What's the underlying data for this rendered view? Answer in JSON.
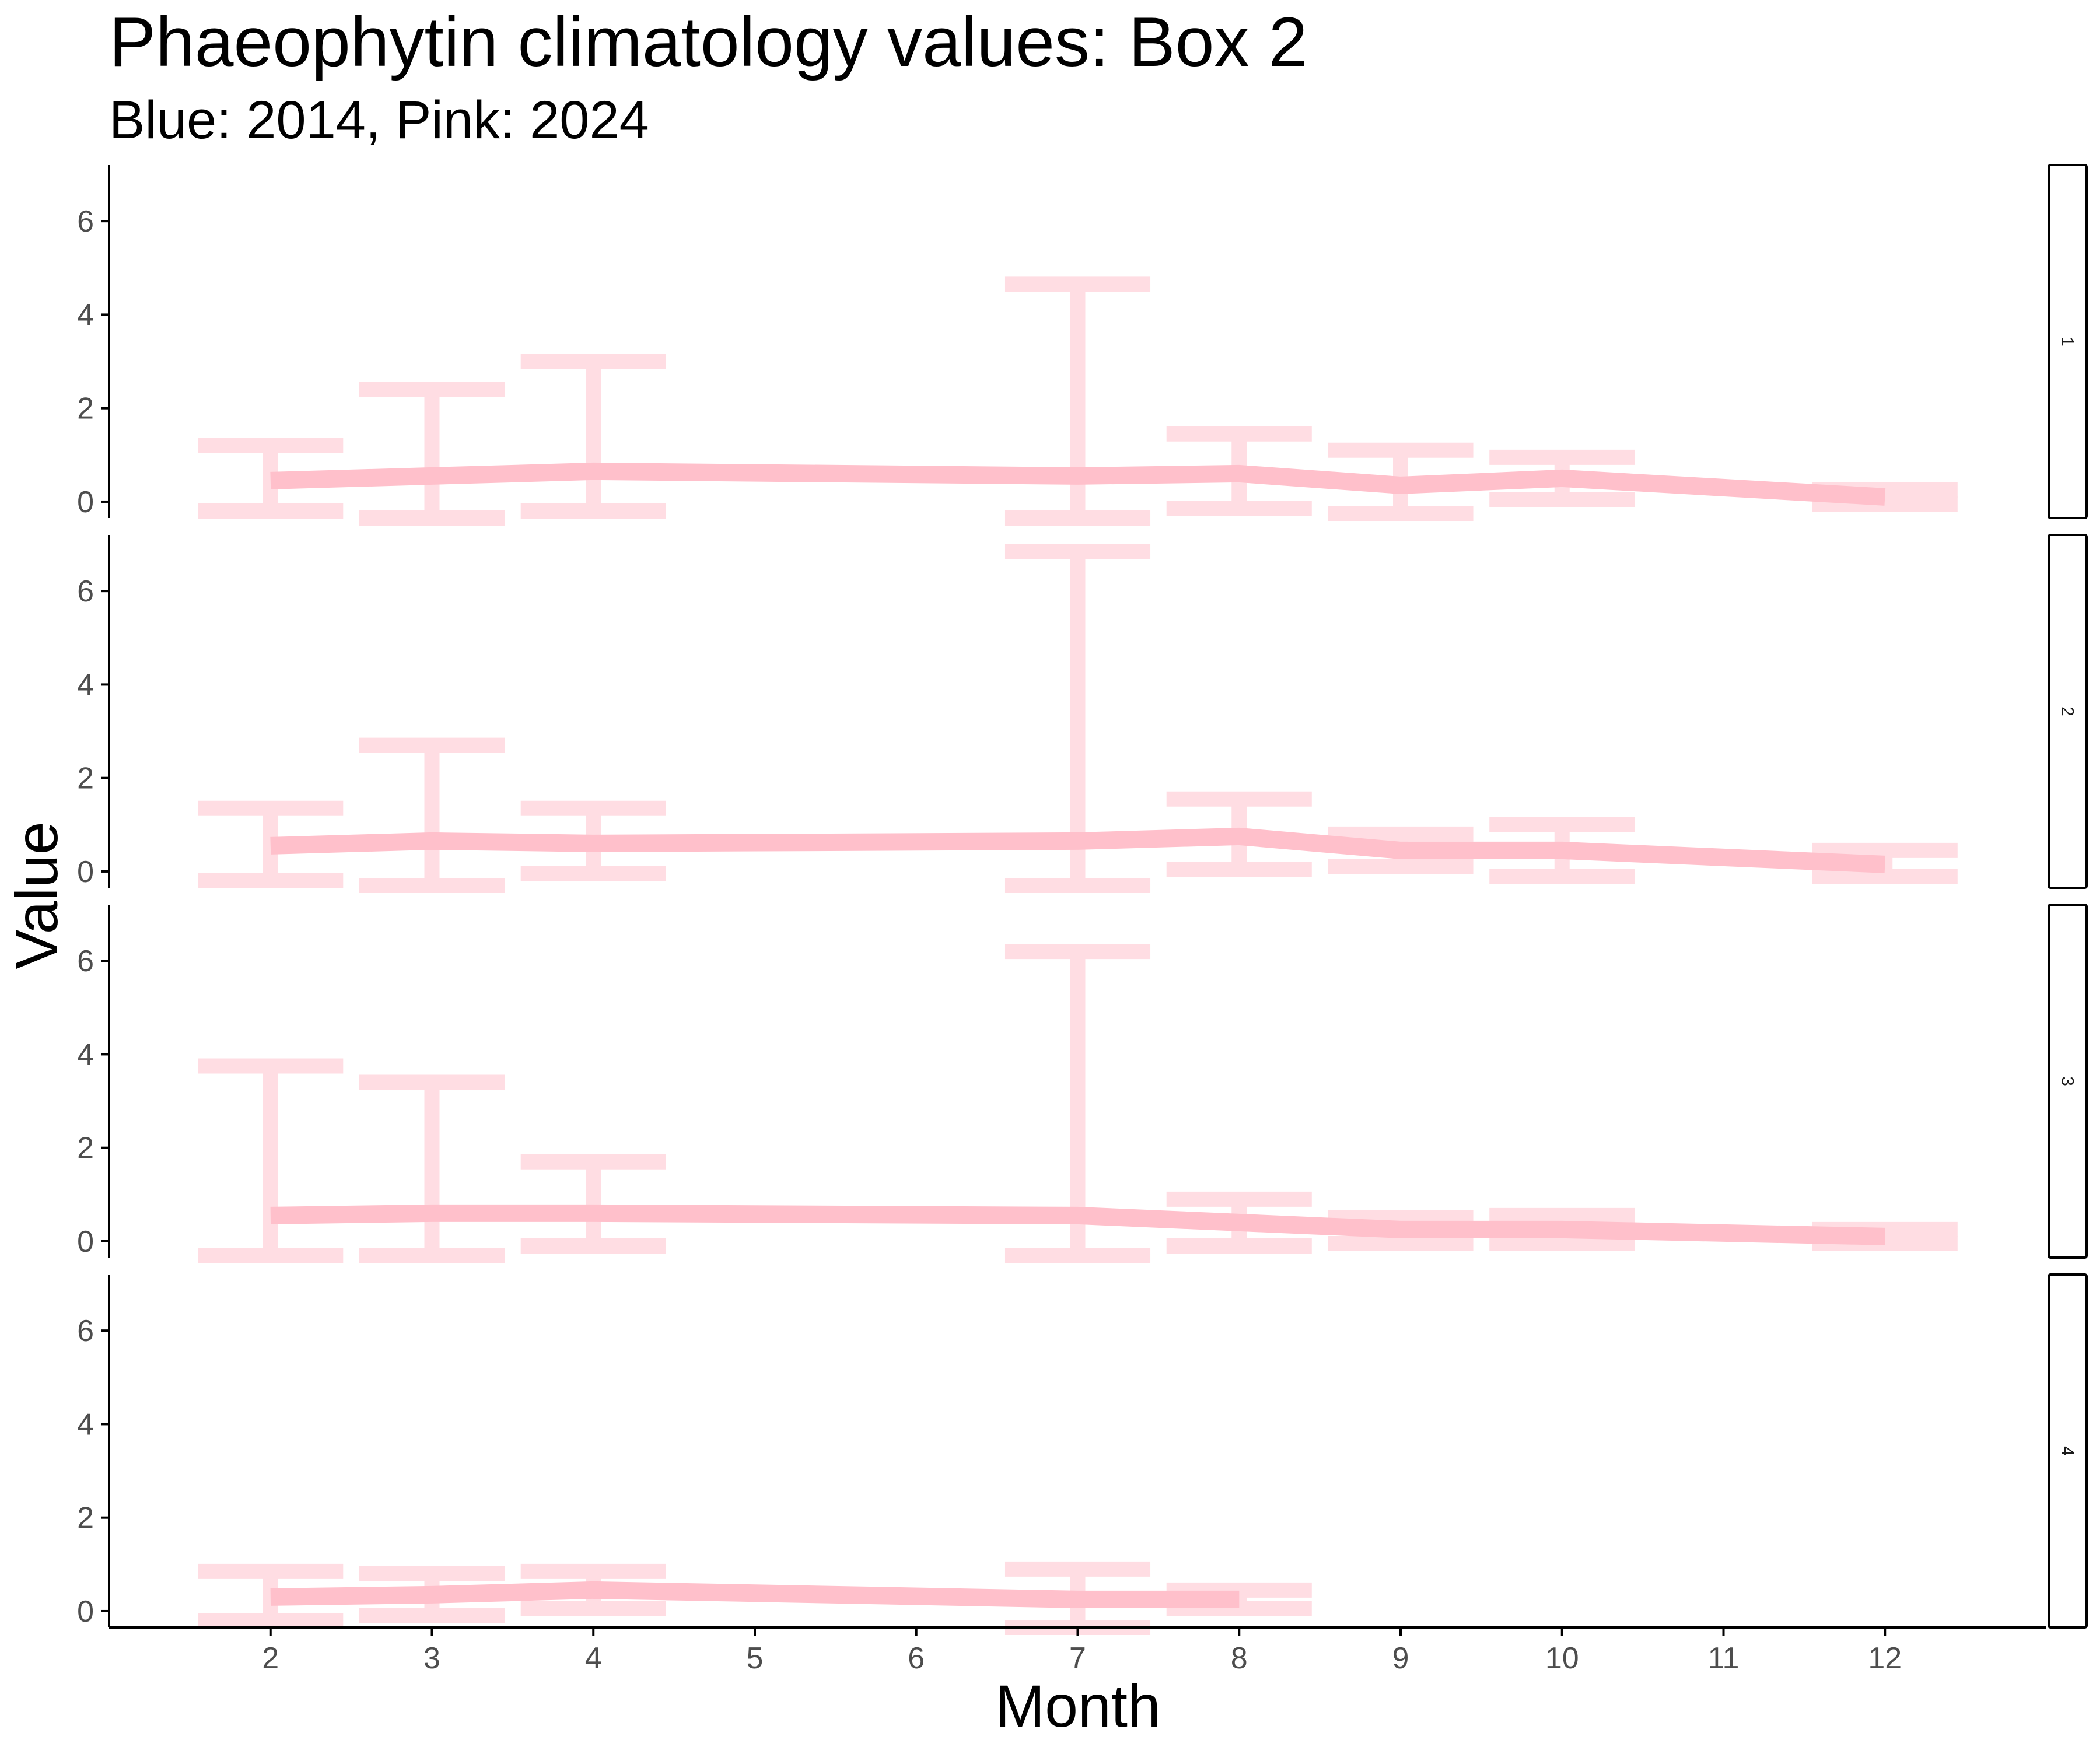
{
  "chart_data": {
    "type": "line",
    "title": "Phaeophytin climatology values: Box 2",
    "subtitle": "Blue: 2014, Pink: 2024",
    "xlabel": "Month",
    "ylabel": "Value",
    "x_ticks": [
      2,
      3,
      4,
      5,
      6,
      7,
      8,
      9,
      10,
      11,
      12
    ],
    "y_ticks": [
      0,
      2,
      4,
      6
    ],
    "ylim": [
      -0.35,
      7.2
    ],
    "xlim": [
      1,
      13
    ],
    "grid": false,
    "legend": "none",
    "colors": {
      "series_2024": "#ffc0cb",
      "series_2024_errorbar": "#ffdde3",
      "axis": "#000000"
    },
    "panels": [
      {
        "strip_label": "1",
        "points": [
          {
            "x": 2,
            "y": 0.45,
            "ymin": -0.2,
            "ymax": 1.2
          },
          {
            "x": 3,
            "y": 0.55,
            "ymin": -0.35,
            "ymax": 2.4
          },
          {
            "x": 4,
            "y": 0.65,
            "ymin": -0.2,
            "ymax": 3.0
          },
          {
            "x": 7,
            "y": 0.55,
            "ymin": -0.35,
            "ymax": 4.65
          },
          {
            "x": 8,
            "y": 0.6,
            "ymin": -0.15,
            "ymax": 1.45
          },
          {
            "x": 9,
            "y": 0.35,
            "ymin": -0.25,
            "ymax": 1.1
          },
          {
            "x": 10,
            "y": 0.5,
            "ymin": 0.05,
            "ymax": 0.95
          },
          {
            "x": 12,
            "y": 0.1,
            "ymin": -0.05,
            "ymax": 0.25
          }
        ]
      },
      {
        "strip_label": "2",
        "points": [
          {
            "x": 2,
            "y": 0.55,
            "ymin": -0.2,
            "ymax": 1.35
          },
          {
            "x": 3,
            "y": 0.65,
            "ymin": -0.3,
            "ymax": 2.7
          },
          {
            "x": 4,
            "y": 0.6,
            "ymin": -0.05,
            "ymax": 1.35
          },
          {
            "x": 7,
            "y": 0.65,
            "ymin": -0.3,
            "ymax": 6.85
          },
          {
            "x": 8,
            "y": 0.75,
            "ymin": 0.05,
            "ymax": 1.55
          },
          {
            "x": 9,
            "y": 0.45,
            "ymin": 0.1,
            "ymax": 0.8
          },
          {
            "x": 10,
            "y": 0.45,
            "ymin": -0.1,
            "ymax": 1.0
          },
          {
            "x": 12,
            "y": 0.15,
            "ymin": -0.1,
            "ymax": 0.45
          }
        ]
      },
      {
        "strip_label": "3",
        "points": [
          {
            "x": 2,
            "y": 0.55,
            "ymin": -0.3,
            "ymax": 3.75
          },
          {
            "x": 3,
            "y": 0.6,
            "ymin": -0.3,
            "ymax": 3.4
          },
          {
            "x": 4,
            "y": 0.6,
            "ymin": -0.1,
            "ymax": 1.7
          },
          {
            "x": 7,
            "y": 0.55,
            "ymin": -0.3,
            "ymax": 6.2
          },
          {
            "x": 8,
            "y": 0.4,
            "ymin": -0.1,
            "ymax": 0.9
          },
          {
            "x": 9,
            "y": 0.25,
            "ymin": -0.05,
            "ymax": 0.5
          },
          {
            "x": 10,
            "y": 0.25,
            "ymin": -0.05,
            "ymax": 0.55
          },
          {
            "x": 12,
            "y": 0.1,
            "ymin": -0.05,
            "ymax": 0.25
          }
        ]
      },
      {
        "strip_label": "4",
        "points": [
          {
            "x": 2,
            "y": 0.3,
            "ymin": -0.2,
            "ymax": 0.85
          },
          {
            "x": 3,
            "y": 0.35,
            "ymin": -0.1,
            "ymax": 0.8
          },
          {
            "x": 4,
            "y": 0.45,
            "ymin": 0.05,
            "ymax": 0.85
          },
          {
            "x": 7,
            "y": 0.25,
            "ymin": -0.35,
            "ymax": 0.9
          },
          {
            "x": 8,
            "y": 0.25,
            "ymin": 0.05,
            "ymax": 0.45
          }
        ]
      }
    ]
  }
}
